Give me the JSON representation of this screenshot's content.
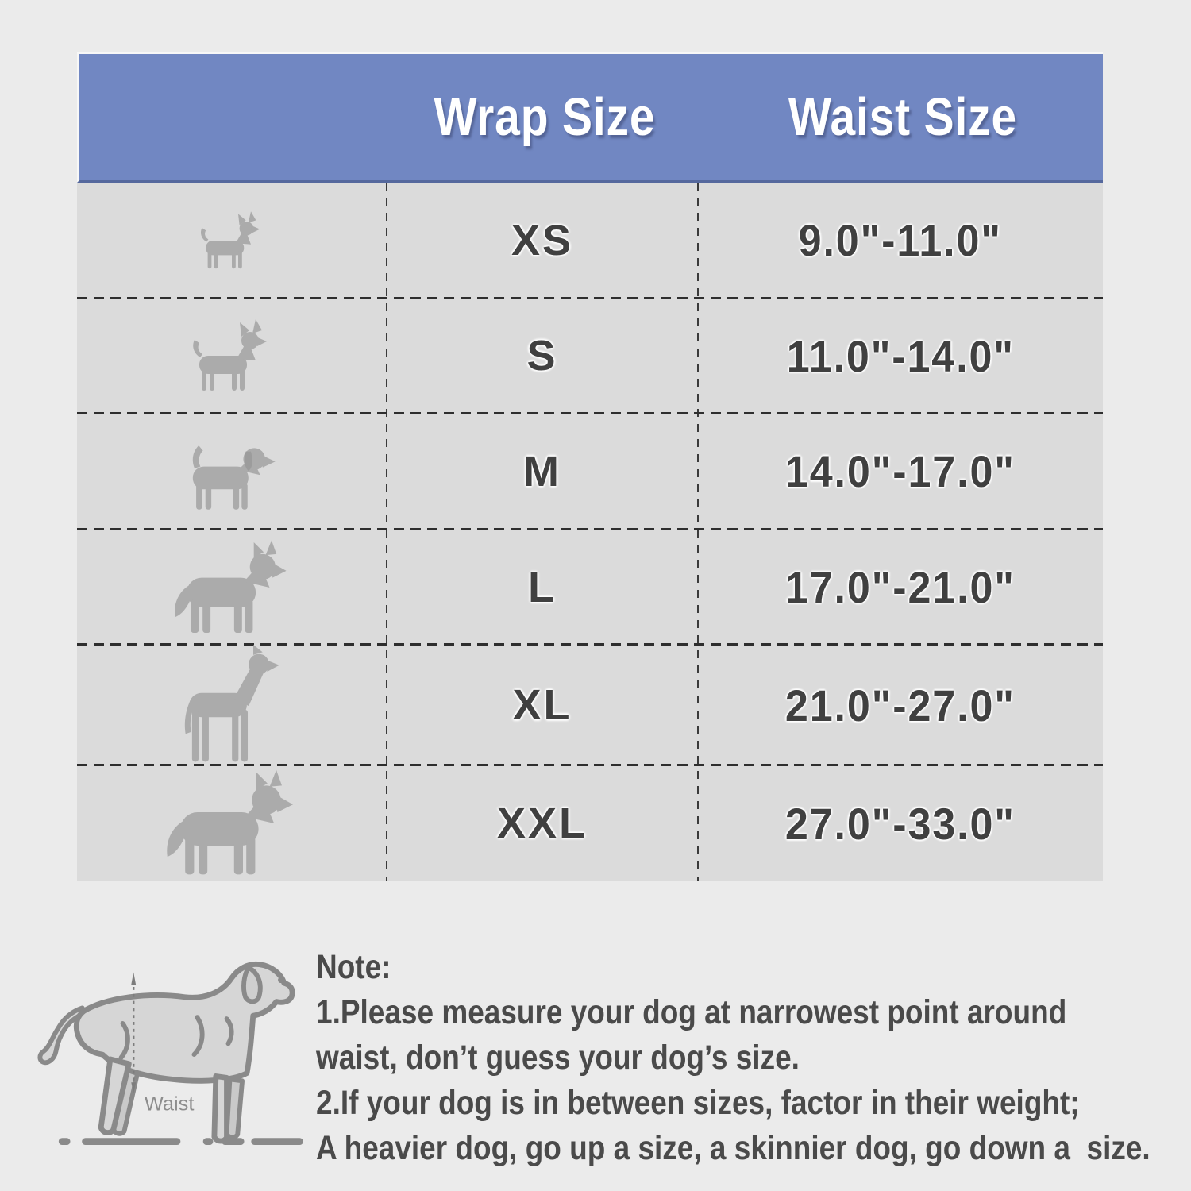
{
  "colors": {
    "page_bg": "#ebebeb",
    "header_bg": "#7187c2",
    "header_edge": "#55689d",
    "header_text": "#ffffff",
    "table_bg": "#dbdbdb",
    "cell_text": "#404040",
    "dog_silhouette": "#ababab",
    "divider_dark": "#2e2e2e",
    "divider_mid": "#3a3a3a",
    "note_text": "#4a4a4a",
    "outline_dog_stroke": "#8a8a8a",
    "outline_dog_fill": "#d6d6d6"
  },
  "table": {
    "header": {
      "wrap_label": "Wrap Size",
      "waist_label": "Waist Size"
    },
    "rows": [
      {
        "size": "XS",
        "waist": "9.0\"-11.0\"",
        "icon": "dog-xs-icon"
      },
      {
        "size": "S",
        "waist": "11.0\"-14.0\"",
        "icon": "dog-s-icon"
      },
      {
        "size": "M",
        "waist": "14.0\"-17.0\"",
        "icon": "dog-m-icon"
      },
      {
        "size": "L",
        "waist": "17.0\"-21.0\"",
        "icon": "dog-l-icon"
      },
      {
        "size": "XL",
        "waist": "21.0\"-27.0\"",
        "icon": "dog-xl-icon"
      },
      {
        "size": "XXL",
        "waist": "27.0\"-33.0\"",
        "icon": "dog-xxl-icon"
      }
    ]
  },
  "diagram": {
    "waist_label": "Waist",
    "icon": "measuring-dog-outline-icon"
  },
  "note": {
    "title": "Note:",
    "lines": [
      "1.Please measure your dog at narrowest point around",
      "waist, don’t guess your dog’s size.",
      "2.If your dog is in between sizes, factor in their weight;",
      "A heavier dog, go up a size, a skinnier dog, go down a  size."
    ]
  },
  "chart_data": {
    "type": "table",
    "title": "Dog wrap sizing chart",
    "columns": [
      "Wrap Size",
      "Waist Size"
    ],
    "rows": [
      [
        "XS",
        "9.0\"-11.0\""
      ],
      [
        "S",
        "11.0\"-14.0\""
      ],
      [
        "M",
        "14.0\"-17.0\""
      ],
      [
        "L",
        "17.0\"-21.0\""
      ],
      [
        "XL",
        "21.0\"-27.0\""
      ],
      [
        "XXL",
        "27.0\"-33.0\""
      ]
    ],
    "legend_position": "none",
    "grid": "dashed row and column separators"
  }
}
